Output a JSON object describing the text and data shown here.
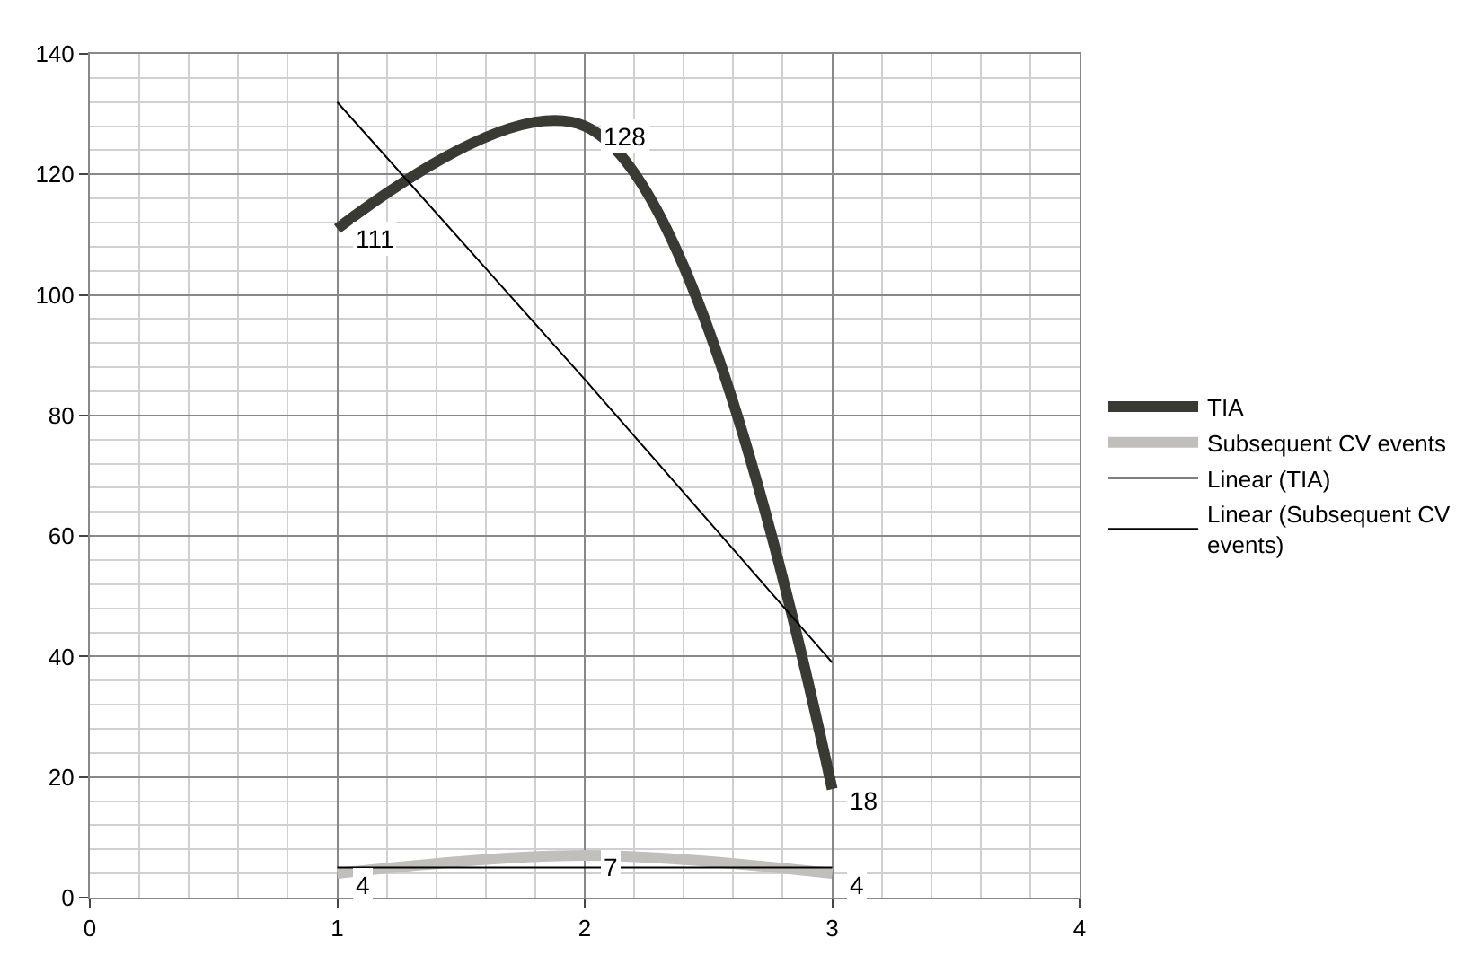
{
  "chart_data": {
    "type": "line",
    "x": [
      1,
      2,
      3
    ],
    "series": [
      {
        "name": "TIA",
        "color": "#3a3a35",
        "values": [
          111,
          128,
          18
        ],
        "value_labels": [
          "111",
          "128",
          "18"
        ]
      },
      {
        "name": "Subsequent CV events",
        "color": "#c0bfbb",
        "values": [
          4,
          7,
          4
        ],
        "value_labels": [
          "4",
          "7",
          "4"
        ]
      },
      {
        "name": "Linear (TIA)",
        "color": "#000000",
        "values": [
          132,
          86,
          39
        ]
      },
      {
        "name": "Linear (Subsequent CV events)",
        "color": "#000000",
        "values": [
          5,
          5,
          5
        ]
      }
    ],
    "xlim": [
      0,
      4
    ],
    "xticks": [
      0,
      1,
      2,
      3,
      4
    ],
    "ylim": [
      0,
      140
    ],
    "yticks": [
      0,
      20,
      40,
      60,
      80,
      100,
      120,
      140
    ],
    "grid": true,
    "legend": "right",
    "marker": "none",
    "line_style": "solid"
  }
}
